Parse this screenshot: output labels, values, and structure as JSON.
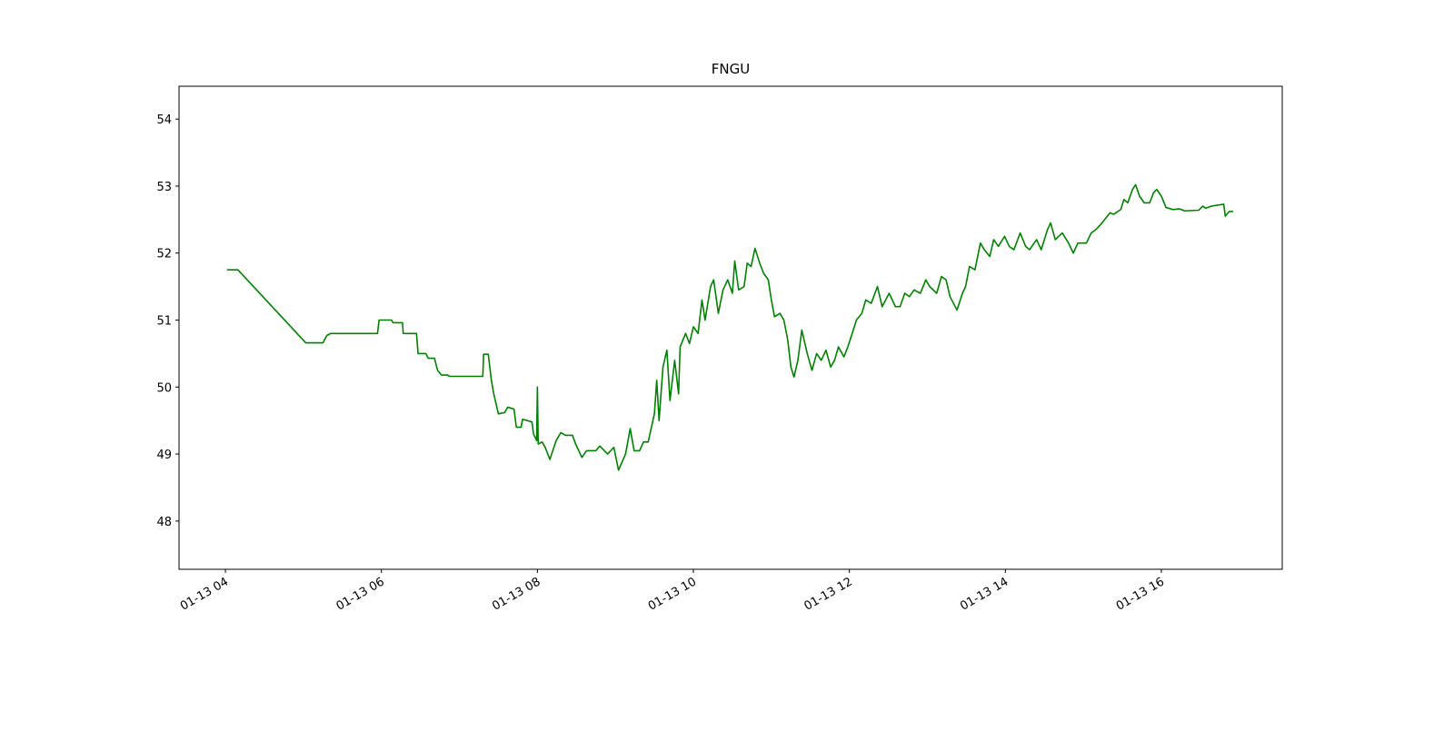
{
  "chart_data": {
    "type": "line",
    "title": "FNGU",
    "color": "#008000",
    "x": [
      4.02,
      4.16,
      5.03,
      5.25,
      5.3,
      5.35,
      5.95,
      5.97,
      6.13,
      6.15,
      6.27,
      6.28,
      6.45,
      6.47,
      6.57,
      6.6,
      6.68,
      6.72,
      6.77,
      6.85,
      6.87,
      7.3,
      7.31,
      7.37,
      7.41,
      7.44,
      7.5,
      7.58,
      7.62,
      7.7,
      7.73,
      7.79,
      7.81,
      7.93,
      7.95,
      7.99,
      8.0,
      8.01,
      8.06,
      8.1,
      8.16,
      8.24,
      8.3,
      8.36,
      8.45,
      8.49,
      8.57,
      8.63,
      8.75,
      8.8,
      8.9,
      8.98,
      9.04,
      9.13,
      9.19,
      9.24,
      9.31,
      9.36,
      9.42,
      9.5,
      9.53,
      9.56,
      9.61,
      9.66,
      9.7,
      9.76,
      9.81,
      9.83,
      9.9,
      9.95,
      10.0,
      10.06,
      10.11,
      10.15,
      10.22,
      10.26,
      10.32,
      10.38,
      10.44,
      10.5,
      10.53,
      10.58,
      10.65,
      10.69,
      10.74,
      10.79,
      10.85,
      10.9,
      10.96,
      11.0,
      11.04,
      11.11,
      11.16,
      11.21,
      11.25,
      11.29,
      11.34,
      11.39,
      11.46,
      11.52,
      11.58,
      11.64,
      11.7,
      11.76,
      11.81,
      11.86,
      11.93,
      11.98,
      12.05,
      12.09,
      12.16,
      12.21,
      12.28,
      12.36,
      12.42,
      12.51,
      12.59,
      12.65,
      12.71,
      12.77,
      12.83,
      12.91,
      12.98,
      13.03,
      13.12,
      13.18,
      13.24,
      13.29,
      13.38,
      13.45,
      13.49,
      13.54,
      13.61,
      13.68,
      13.73,
      13.8,
      13.85,
      13.91,
      13.99,
      14.05,
      14.11,
      14.19,
      14.26,
      14.31,
      14.4,
      14.46,
      14.54,
      14.58,
      14.64,
      14.73,
      14.81,
      14.87,
      14.93,
      15.04,
      15.1,
      15.16,
      15.24,
      15.34,
      15.39,
      15.48,
      15.52,
      15.57,
      15.63,
      15.67,
      15.72,
      15.78,
      15.85,
      15.9,
      15.94,
      16.0,
      16.06,
      16.15,
      16.23,
      16.3,
      16.48,
      16.53,
      16.57,
      16.64,
      16.8,
      16.82,
      16.87,
      16.92
    ],
    "values": [
      51.75,
      51.75,
      50.66,
      50.66,
      50.77,
      50.8,
      50.8,
      51.0,
      51.0,
      50.96,
      50.96,
      50.8,
      50.8,
      50.5,
      50.5,
      50.43,
      50.43,
      50.25,
      50.18,
      50.18,
      50.16,
      50.16,
      50.49,
      50.49,
      50.1,
      49.9,
      49.6,
      49.62,
      49.7,
      49.67,
      49.4,
      49.4,
      49.52,
      49.48,
      49.3,
      49.2,
      50.0,
      49.15,
      49.18,
      49.1,
      48.92,
      49.2,
      49.32,
      49.28,
      49.28,
      49.15,
      48.95,
      49.05,
      49.05,
      49.12,
      49.0,
      49.1,
      48.76,
      49.0,
      49.38,
      49.05,
      49.05,
      49.18,
      49.18,
      49.6,
      50.1,
      49.5,
      50.3,
      50.55,
      49.8,
      50.4,
      49.9,
      50.6,
      50.8,
      50.65,
      50.9,
      50.8,
      51.3,
      51.0,
      51.5,
      51.6,
      51.1,
      51.45,
      51.6,
      51.4,
      51.88,
      51.45,
      51.5,
      51.85,
      51.8,
      52.07,
      51.85,
      51.7,
      51.6,
      51.3,
      51.05,
      51.1,
      51.0,
      50.7,
      50.3,
      50.15,
      50.4,
      50.85,
      50.5,
      50.25,
      50.5,
      50.4,
      50.55,
      50.3,
      50.4,
      50.6,
      50.45,
      50.6,
      50.85,
      51.0,
      51.1,
      51.3,
      51.25,
      51.5,
      51.2,
      51.4,
      51.2,
      51.2,
      51.4,
      51.35,
      51.45,
      51.4,
      51.6,
      51.5,
      51.4,
      51.65,
      51.6,
      51.35,
      51.15,
      51.4,
      51.5,
      51.8,
      51.75,
      52.15,
      52.05,
      51.95,
      52.2,
      52.1,
      52.25,
      52.1,
      52.05,
      52.3,
      52.1,
      52.05,
      52.2,
      52.05,
      52.35,
      52.45,
      52.2,
      52.3,
      52.15,
      52.0,
      52.15,
      52.15,
      52.3,
      52.35,
      52.45,
      52.6,
      52.58,
      52.65,
      52.8,
      52.75,
      52.95,
      53.02,
      52.85,
      52.75,
      52.75,
      52.9,
      52.95,
      52.85,
      52.68,
      52.65,
      52.66,
      52.63,
      52.64,
      52.7,
      52.67,
      52.7,
      52.73,
      52.55,
      52.62,
      52.62
    ],
    "xlim": [
      3.405,
      17.55
    ],
    "ylim": [
      47.28,
      54.49
    ],
    "xticks": [
      {
        "value": 4,
        "label": "01-13 04"
      },
      {
        "value": 6,
        "label": "01-13 06"
      },
      {
        "value": 8,
        "label": "01-13 08"
      },
      {
        "value": 10,
        "label": "01-13 10"
      },
      {
        "value": 12,
        "label": "01-13 12"
      },
      {
        "value": 14,
        "label": "01-13 14"
      },
      {
        "value": 16,
        "label": "01-13 16"
      }
    ],
    "yticks": [
      48,
      49,
      50,
      51,
      52,
      53,
      54
    ]
  }
}
